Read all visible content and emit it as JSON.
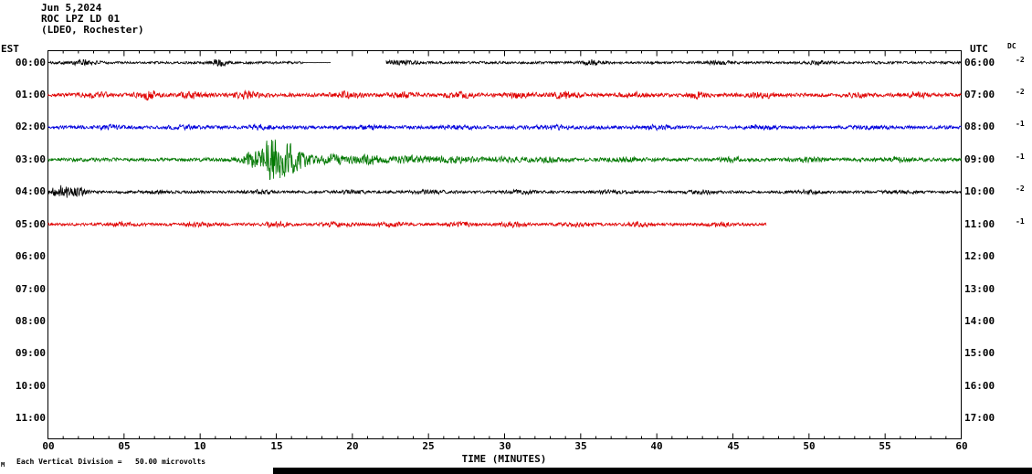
{
  "header": {
    "date": "Jun 5,2024",
    "station": "ROC LPZ LD 01",
    "network": "(LDEO, Rochester)"
  },
  "axes": {
    "left_label": "EST",
    "right_label": "UTC",
    "dc_label": "DC",
    "x_label": "TIME (MINUTES)",
    "x_ticks": [
      "00",
      "05",
      "10",
      "15",
      "20",
      "25",
      "30",
      "35",
      "40",
      "45",
      "50",
      "55",
      "60"
    ]
  },
  "footer": {
    "scale_note": "Each Vertical Division =   50.00 microvolts",
    "corner_mark": "M"
  },
  "chart_data": {
    "type": "line",
    "title": "ROC LPZ LD 01 (LDEO, Rochester) helicorder, Jun 5,2024",
    "x_range_minutes": [
      0,
      60
    ],
    "minutes_per_row": 60,
    "vertical_division_microvolts": 50.0,
    "rows": [
      {
        "est": "00:00",
        "utc": "06:00",
        "dc": "-2",
        "color": "#000000",
        "has_data": true,
        "start": 0,
        "end": 60,
        "base_amp": 1.2,
        "seed": 101,
        "events": [
          {
            "c": 2.3,
            "a": 2.2,
            "w": 0.9
          },
          {
            "c": 11.2,
            "a": 3.2,
            "w": 0.5
          },
          {
            "c": 23.2,
            "a": 1.8,
            "w": 1.2
          },
          {
            "c": 35.8,
            "a": 2.2,
            "w": 0.7
          },
          {
            "c": 44,
            "a": 1.2,
            "w": 1
          },
          {
            "c": 50.6,
            "a": 1.5,
            "w": 0.7
          }
        ],
        "quiet": [
          [
            16.8,
            18.6
          ]
        ],
        "gaps": [
          [
            18.6,
            22.2
          ]
        ]
      },
      {
        "est": "01:00",
        "utc": "07:00",
        "dc": "-2",
        "color": "#e00000",
        "has_data": true,
        "start": 0,
        "end": 60,
        "base_amp": 1.8,
        "seed": 202,
        "events": [
          {
            "c": 3,
            "a": 1.5,
            "w": 1
          },
          {
            "c": 6.6,
            "a": 3.5,
            "w": 0.7
          },
          {
            "c": 9.5,
            "a": 2,
            "w": 0.8
          },
          {
            "c": 13,
            "a": 2.2,
            "w": 0.9
          },
          {
            "c": 19.6,
            "a": 2.2,
            "w": 0.8
          },
          {
            "c": 23.5,
            "a": 1.8,
            "w": 0.9
          },
          {
            "c": 27,
            "a": 1.8,
            "w": 1
          },
          {
            "c": 31,
            "a": 1.5,
            "w": 1
          },
          {
            "c": 34,
            "a": 2.2,
            "w": 0.8
          },
          {
            "c": 38.5,
            "a": 1.5,
            "w": 0.9
          },
          {
            "c": 42.6,
            "a": 2.2,
            "w": 0.6
          },
          {
            "c": 47,
            "a": 1.8,
            "w": 0.8
          },
          {
            "c": 53,
            "a": 1.5,
            "w": 0.9
          },
          {
            "c": 57,
            "a": 1.5,
            "w": 0.8
          }
        ],
        "quiet": [],
        "gaps": []
      },
      {
        "est": "02:00",
        "utc": "08:00",
        "dc": "-1",
        "color": "#0000dd",
        "has_data": true,
        "start": 0,
        "end": 60,
        "base_amp": 1.6,
        "seed": 303,
        "events": [
          {
            "c": 4,
            "a": 1.2,
            "w": 1
          },
          {
            "c": 9,
            "a": 1,
            "w": 1
          },
          {
            "c": 14,
            "a": 1.6,
            "w": 0.9
          },
          {
            "c": 21,
            "a": 1.2,
            "w": 1
          },
          {
            "c": 27,
            "a": 1,
            "w": 1
          },
          {
            "c": 33,
            "a": 1.2,
            "w": 1
          },
          {
            "c": 40,
            "a": 1,
            "w": 1
          },
          {
            "c": 47,
            "a": 1.2,
            "w": 1
          },
          {
            "c": 54,
            "a": 1,
            "w": 1
          }
        ],
        "quiet": [],
        "gaps": []
      },
      {
        "est": "03:00",
        "utc": "09:00",
        "dc": "-1",
        "color": "#007700",
        "has_data": true,
        "start": 0,
        "end": 60,
        "base_amp": 1.7,
        "seed": 404,
        "events": [
          {
            "c": 13.5,
            "a": 8,
            "wl": 0.7,
            "wr": 1
          },
          {
            "c": 14.7,
            "a": 21,
            "wl": 0.5,
            "wr": 1.4
          },
          {
            "c": 16.6,
            "a": 5,
            "w": 1
          },
          {
            "c": 18.8,
            "a": 3.5,
            "w": 0.9
          },
          {
            "c": 20.9,
            "a": 3.5,
            "w": 1.1
          },
          {
            "c": 23.5,
            "a": 2.5,
            "w": 1.4
          },
          {
            "c": 26.5,
            "a": 2,
            "w": 1.6
          },
          {
            "c": 30,
            "a": 1.5,
            "w": 1.5
          },
          {
            "c": 33,
            "a": 1.8,
            "w": 0.9
          },
          {
            "c": 38,
            "a": 1.2,
            "w": 1
          },
          {
            "c": 45,
            "a": 1.3,
            "w": 1
          },
          {
            "c": 50,
            "a": 1.2,
            "w": 1
          },
          {
            "c": 56,
            "a": 1.5,
            "w": 0.8
          }
        ],
        "quiet": [],
        "gaps": []
      },
      {
        "est": "04:00",
        "utc": "10:00",
        "dc": "-2",
        "color": "#000000",
        "has_data": true,
        "start": 0,
        "end": 60,
        "base_amp": 1.3,
        "seed": 505,
        "events": [
          {
            "c": 0.9,
            "a": 5,
            "w": 0.8
          },
          {
            "c": 2.1,
            "a": 2.5,
            "w": 0.6
          },
          {
            "c": 7,
            "a": 1,
            "w": 1
          },
          {
            "c": 14,
            "a": 1,
            "w": 1
          },
          {
            "c": 20,
            "a": 1,
            "w": 1
          },
          {
            "c": 25,
            "a": 1.2,
            "w": 1
          },
          {
            "c": 31,
            "a": 1,
            "w": 1
          },
          {
            "c": 37,
            "a": 1,
            "w": 1
          },
          {
            "c": 43,
            "a": 1,
            "w": 1
          },
          {
            "c": 50,
            "a": 1,
            "w": 1
          },
          {
            "c": 56,
            "a": 1,
            "w": 1
          }
        ],
        "quiet": [],
        "gaps": []
      },
      {
        "est": "05:00",
        "utc": "11:00",
        "dc": "-1",
        "color": "#e00000",
        "has_data": true,
        "start": 0,
        "end": 47.2,
        "base_amp": 1.4,
        "seed": 606,
        "events": [
          {
            "c": 5,
            "a": 1.2,
            "w": 1
          },
          {
            "c": 10,
            "a": 1.2,
            "w": 1
          },
          {
            "c": 15,
            "a": 1.8,
            "w": 0.8
          },
          {
            "c": 19,
            "a": 1.2,
            "w": 1
          },
          {
            "c": 22.5,
            "a": 1.5,
            "w": 0.9
          },
          {
            "c": 27,
            "a": 1.3,
            "w": 1
          },
          {
            "c": 30.5,
            "a": 1.6,
            "w": 0.8
          },
          {
            "c": 35,
            "a": 1.3,
            "w": 1
          },
          {
            "c": 39,
            "a": 1.4,
            "w": 0.9
          },
          {
            "c": 44,
            "a": 1.4,
            "w": 0.9
          }
        ],
        "quiet": [],
        "gaps": []
      },
      {
        "est": "06:00",
        "utc": "12:00",
        "dc": "",
        "color": "",
        "has_data": false
      },
      {
        "est": "07:00",
        "utc": "13:00",
        "dc": "",
        "color": "",
        "has_data": false
      },
      {
        "est": "08:00",
        "utc": "14:00",
        "dc": "",
        "color": "",
        "has_data": false
      },
      {
        "est": "09:00",
        "utc": "15:00",
        "dc": "",
        "color": "",
        "has_data": false
      },
      {
        "est": "10:00",
        "utc": "16:00",
        "dc": "",
        "color": "",
        "has_data": false
      },
      {
        "est": "11:00",
        "utc": "17:00",
        "dc": "",
        "color": "",
        "has_data": false
      }
    ]
  }
}
